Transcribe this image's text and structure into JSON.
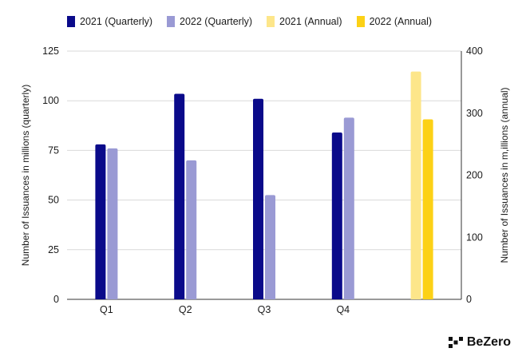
{
  "chart_data": {
    "type": "bar",
    "categories": [
      "Q1",
      "Q2",
      "Q3",
      "Q4",
      ""
    ],
    "series": [
      {
        "name": "2021 (Quarterly)",
        "axis": "left",
        "color": "#0a0a8a",
        "values": [
          78,
          103.5,
          101,
          84,
          null
        ]
      },
      {
        "name": "2022 (Quarterly)",
        "axis": "left",
        "color": "#9a9ad4",
        "values": [
          76,
          70,
          52.5,
          91.5,
          null
        ]
      },
      {
        "name": "2021 (Annual)",
        "axis": "right",
        "color": "#fde68a",
        "values": [
          null,
          null,
          null,
          null,
          367
        ]
      },
      {
        "name": "2022 (Annual)",
        "axis": "right",
        "color": "#fcd116",
        "values": [
          null,
          null,
          null,
          null,
          290
        ]
      }
    ],
    "ylabel": "Number of Issuances in millions (quarterly)",
    "y2label": "Number of Issuances in m,illions (annual)",
    "ylim": [
      0,
      125
    ],
    "y2lim": [
      0,
      400
    ],
    "yticks": [
      0,
      25,
      50,
      75,
      100,
      125
    ],
    "y2ticks": [
      0,
      100,
      200,
      300,
      400
    ],
    "grid": true,
    "legend_position": "top"
  },
  "logo": {
    "text": "BeZero"
  }
}
